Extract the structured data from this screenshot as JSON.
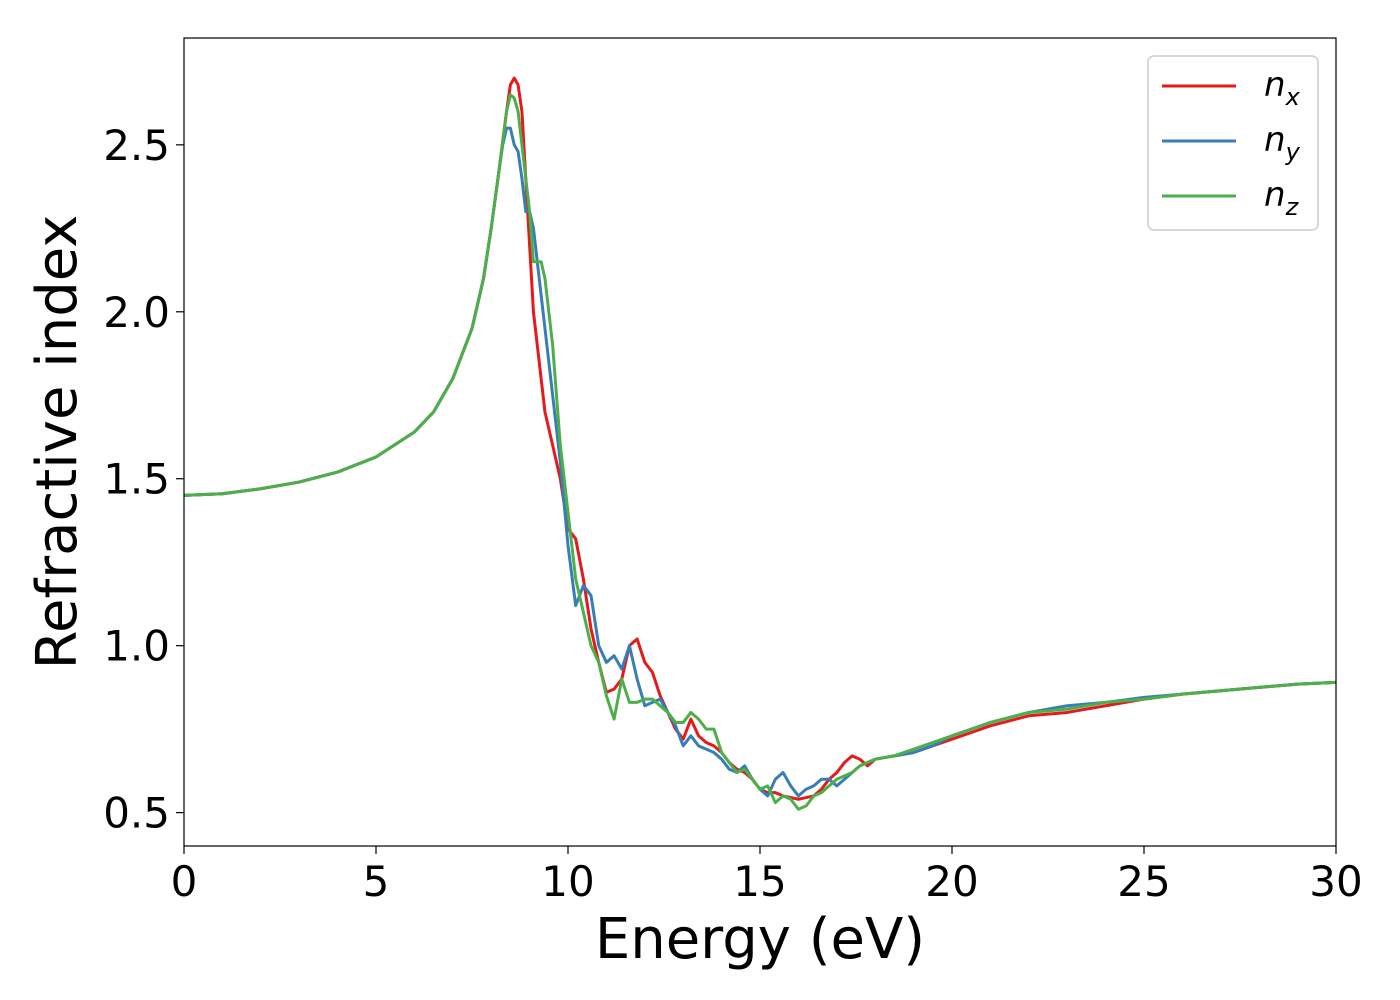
{
  "chart_data": {
    "type": "line",
    "title": "",
    "xlabel": "Energy (eV)",
    "ylabel": "Refractive index",
    "xlim": [
      0,
      30
    ],
    "ylim": [
      0.4,
      2.82
    ],
    "xticks": [
      0,
      5,
      10,
      15,
      20,
      25,
      30
    ],
    "yticks": [
      0.5,
      1.0,
      1.5,
      2.0,
      2.5
    ],
    "xtick_labels": [
      "0",
      "5",
      "10",
      "15",
      "20",
      "25",
      "30"
    ],
    "ytick_labels": [
      "0.5",
      "1.0",
      "1.5",
      "2.0",
      "2.5"
    ],
    "grid": false,
    "legend_position": "top-right",
    "series": [
      {
        "name": "n",
        "subscript": "x",
        "color": "#e41a1c",
        "x": [
          0,
          1,
          2,
          3,
          4,
          5,
          6,
          6.5,
          7,
          7.5,
          7.8,
          8.0,
          8.2,
          8.4,
          8.5,
          8.6,
          8.7,
          8.8,
          8.9,
          9.0,
          9.1,
          9.2,
          9.4,
          9.6,
          9.8,
          10.0,
          10.2,
          10.4,
          10.6,
          10.8,
          11.0,
          11.2,
          11.4,
          11.6,
          11.8,
          12.0,
          12.2,
          12.4,
          12.6,
          12.8,
          13.0,
          13.2,
          13.4,
          13.6,
          13.8,
          14.0,
          14.2,
          14.4,
          14.6,
          14.8,
          15.0,
          15.2,
          15.4,
          15.6,
          15.8,
          16.0,
          16.2,
          16.4,
          16.6,
          16.8,
          17.0,
          17.2,
          17.4,
          17.6,
          17.8,
          18.0,
          18.5,
          19.0,
          19.5,
          20.0,
          20.5,
          21.0,
          22.0,
          23.0,
          24.0,
          25.0,
          26.0,
          27.0,
          28.0,
          29.0,
          30.0
        ],
        "values": [
          1.45,
          1.455,
          1.47,
          1.49,
          1.52,
          1.565,
          1.64,
          1.7,
          1.8,
          1.95,
          2.1,
          2.25,
          2.42,
          2.6,
          2.68,
          2.7,
          2.68,
          2.6,
          2.4,
          2.2,
          2.0,
          1.9,
          1.7,
          1.6,
          1.5,
          1.35,
          1.32,
          1.2,
          1.05,
          0.95,
          0.86,
          0.87,
          0.9,
          1.0,
          1.02,
          0.95,
          0.92,
          0.85,
          0.8,
          0.75,
          0.72,
          0.78,
          0.73,
          0.71,
          0.7,
          0.68,
          0.65,
          0.63,
          0.62,
          0.6,
          0.57,
          0.56,
          0.56,
          0.55,
          0.545,
          0.54,
          0.545,
          0.55,
          0.57,
          0.6,
          0.62,
          0.65,
          0.67,
          0.66,
          0.64,
          0.66,
          0.67,
          0.68,
          0.7,
          0.72,
          0.74,
          0.76,
          0.79,
          0.8,
          0.82,
          0.84,
          0.855,
          0.865,
          0.875,
          0.885,
          0.89
        ]
      },
      {
        "name": "n",
        "subscript": "y",
        "color": "#377eb8",
        "x": [
          0,
          1,
          2,
          3,
          4,
          5,
          6,
          6.5,
          7,
          7.5,
          7.8,
          8.0,
          8.2,
          8.3,
          8.4,
          8.5,
          8.6,
          8.7,
          8.8,
          8.9,
          9.0,
          9.1,
          9.2,
          9.4,
          9.6,
          9.8,
          10.0,
          10.2,
          10.4,
          10.6,
          10.8,
          11.0,
          11.2,
          11.4,
          11.6,
          11.8,
          12.0,
          12.2,
          12.4,
          12.6,
          12.8,
          13.0,
          13.2,
          13.4,
          13.6,
          13.8,
          14.0,
          14.2,
          14.4,
          14.6,
          14.8,
          15.0,
          15.2,
          15.4,
          15.6,
          15.8,
          16.0,
          16.2,
          16.4,
          16.6,
          16.8,
          17.0,
          17.2,
          17.4,
          17.6,
          17.8,
          18.0,
          18.5,
          19.0,
          19.5,
          20.0,
          20.5,
          21.0,
          22.0,
          23.0,
          24.0,
          25.0,
          26.0,
          27.0,
          28.0,
          29.0,
          30.0
        ],
        "values": [
          1.45,
          1.455,
          1.47,
          1.49,
          1.52,
          1.565,
          1.64,
          1.7,
          1.8,
          1.95,
          2.1,
          2.25,
          2.42,
          2.5,
          2.55,
          2.55,
          2.5,
          2.48,
          2.4,
          2.3,
          2.3,
          2.25,
          2.15,
          1.95,
          1.75,
          1.55,
          1.3,
          1.12,
          1.18,
          1.15,
          1.0,
          0.95,
          0.97,
          0.93,
          1.0,
          0.9,
          0.82,
          0.83,
          0.84,
          0.8,
          0.76,
          0.7,
          0.73,
          0.7,
          0.69,
          0.68,
          0.66,
          0.63,
          0.62,
          0.64,
          0.6,
          0.57,
          0.55,
          0.6,
          0.62,
          0.58,
          0.55,
          0.57,
          0.58,
          0.6,
          0.6,
          0.58,
          0.6,
          0.62,
          0.64,
          0.65,
          0.66,
          0.67,
          0.68,
          0.7,
          0.73,
          0.75,
          0.77,
          0.8,
          0.82,
          0.83,
          0.845,
          0.855,
          0.865,
          0.875,
          0.885,
          0.89
        ]
      },
      {
        "name": "n",
        "subscript": "z",
        "color": "#4daf4a",
        "x": [
          0,
          1,
          2,
          3,
          4,
          5,
          6,
          6.5,
          7,
          7.5,
          7.8,
          8.0,
          8.2,
          8.4,
          8.5,
          8.6,
          8.7,
          8.8,
          8.9,
          9.0,
          9.1,
          9.2,
          9.3,
          9.4,
          9.6,
          9.8,
          10.0,
          10.2,
          10.4,
          10.6,
          10.8,
          11.0,
          11.2,
          11.4,
          11.6,
          11.8,
          12.0,
          12.2,
          12.4,
          12.6,
          12.8,
          13.0,
          13.2,
          13.4,
          13.6,
          13.8,
          14.0,
          14.2,
          14.4,
          14.6,
          14.8,
          15.0,
          15.2,
          15.4,
          15.6,
          15.8,
          16.0,
          16.2,
          16.4,
          16.6,
          16.8,
          17.0,
          17.2,
          17.4,
          17.6,
          17.8,
          18.0,
          18.5,
          19.0,
          19.5,
          20.0,
          20.5,
          21.0,
          22.0,
          23.0,
          24.0,
          25.0,
          26.0,
          27.0,
          28.0,
          29.0,
          30.0
        ],
        "values": [
          1.45,
          1.455,
          1.47,
          1.49,
          1.52,
          1.565,
          1.64,
          1.7,
          1.8,
          1.95,
          2.1,
          2.25,
          2.42,
          2.6,
          2.65,
          2.64,
          2.6,
          2.5,
          2.4,
          2.3,
          2.15,
          2.15,
          2.15,
          2.1,
          1.9,
          1.6,
          1.4,
          1.2,
          1.1,
          1.0,
          0.95,
          0.85,
          0.78,
          0.9,
          0.83,
          0.83,
          0.84,
          0.84,
          0.82,
          0.8,
          0.77,
          0.77,
          0.8,
          0.78,
          0.75,
          0.75,
          0.68,
          0.65,
          0.62,
          0.63,
          0.6,
          0.57,
          0.58,
          0.53,
          0.55,
          0.54,
          0.51,
          0.52,
          0.55,
          0.56,
          0.58,
          0.6,
          0.61,
          0.62,
          0.64,
          0.65,
          0.66,
          0.67,
          0.69,
          0.71,
          0.73,
          0.75,
          0.77,
          0.8,
          0.81,
          0.83,
          0.84,
          0.855,
          0.865,
          0.875,
          0.885,
          0.89
        ]
      }
    ]
  }
}
